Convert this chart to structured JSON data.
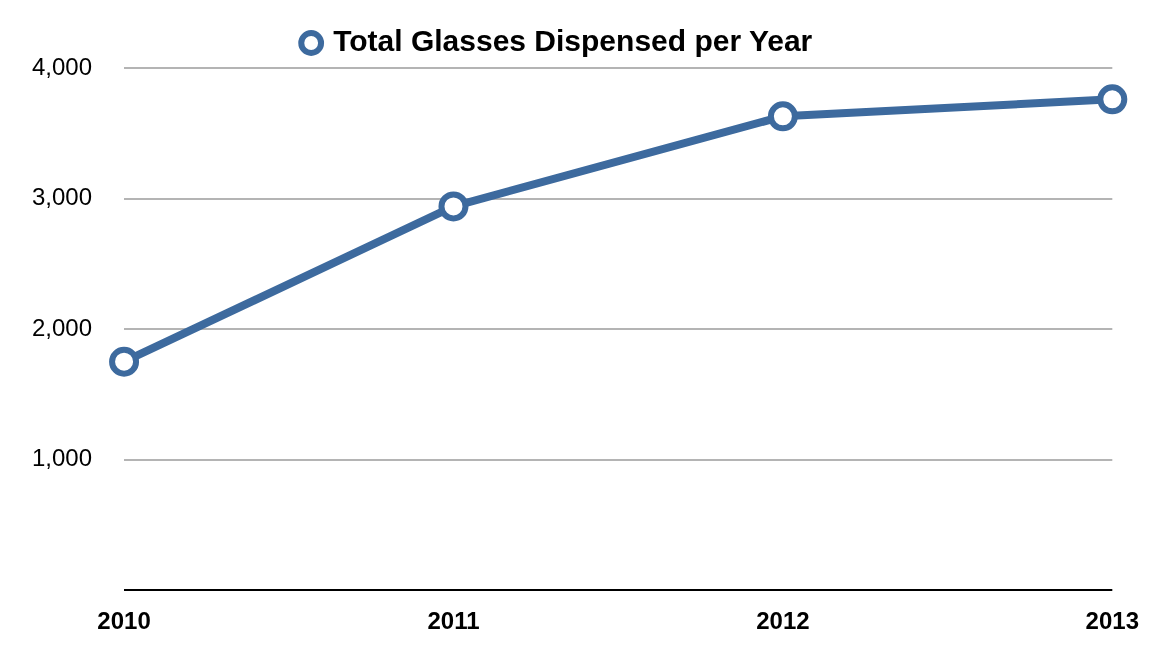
{
  "chart_data": {
    "type": "line",
    "categories": [
      "2010",
      "2011",
      "2012",
      "2013"
    ],
    "series": [
      {
        "name": "Total Glasses Dispensed per Year",
        "color": "#3d6a9e",
        "values": [
          1750,
          2940,
          3630,
          3760
        ]
      }
    ],
    "ylim": [
      0,
      4000
    ],
    "yticks": [
      {
        "value": 0,
        "label": null
      },
      {
        "value": 1000,
        "label": "1,000"
      },
      {
        "value": 2000,
        "label": "2,000"
      },
      {
        "value": 3000,
        "label": "3,000"
      },
      {
        "value": 4000,
        "label": "4,000"
      }
    ],
    "grid": "y",
    "legend": "top",
    "marker": "circle",
    "line_style": "solid"
  }
}
